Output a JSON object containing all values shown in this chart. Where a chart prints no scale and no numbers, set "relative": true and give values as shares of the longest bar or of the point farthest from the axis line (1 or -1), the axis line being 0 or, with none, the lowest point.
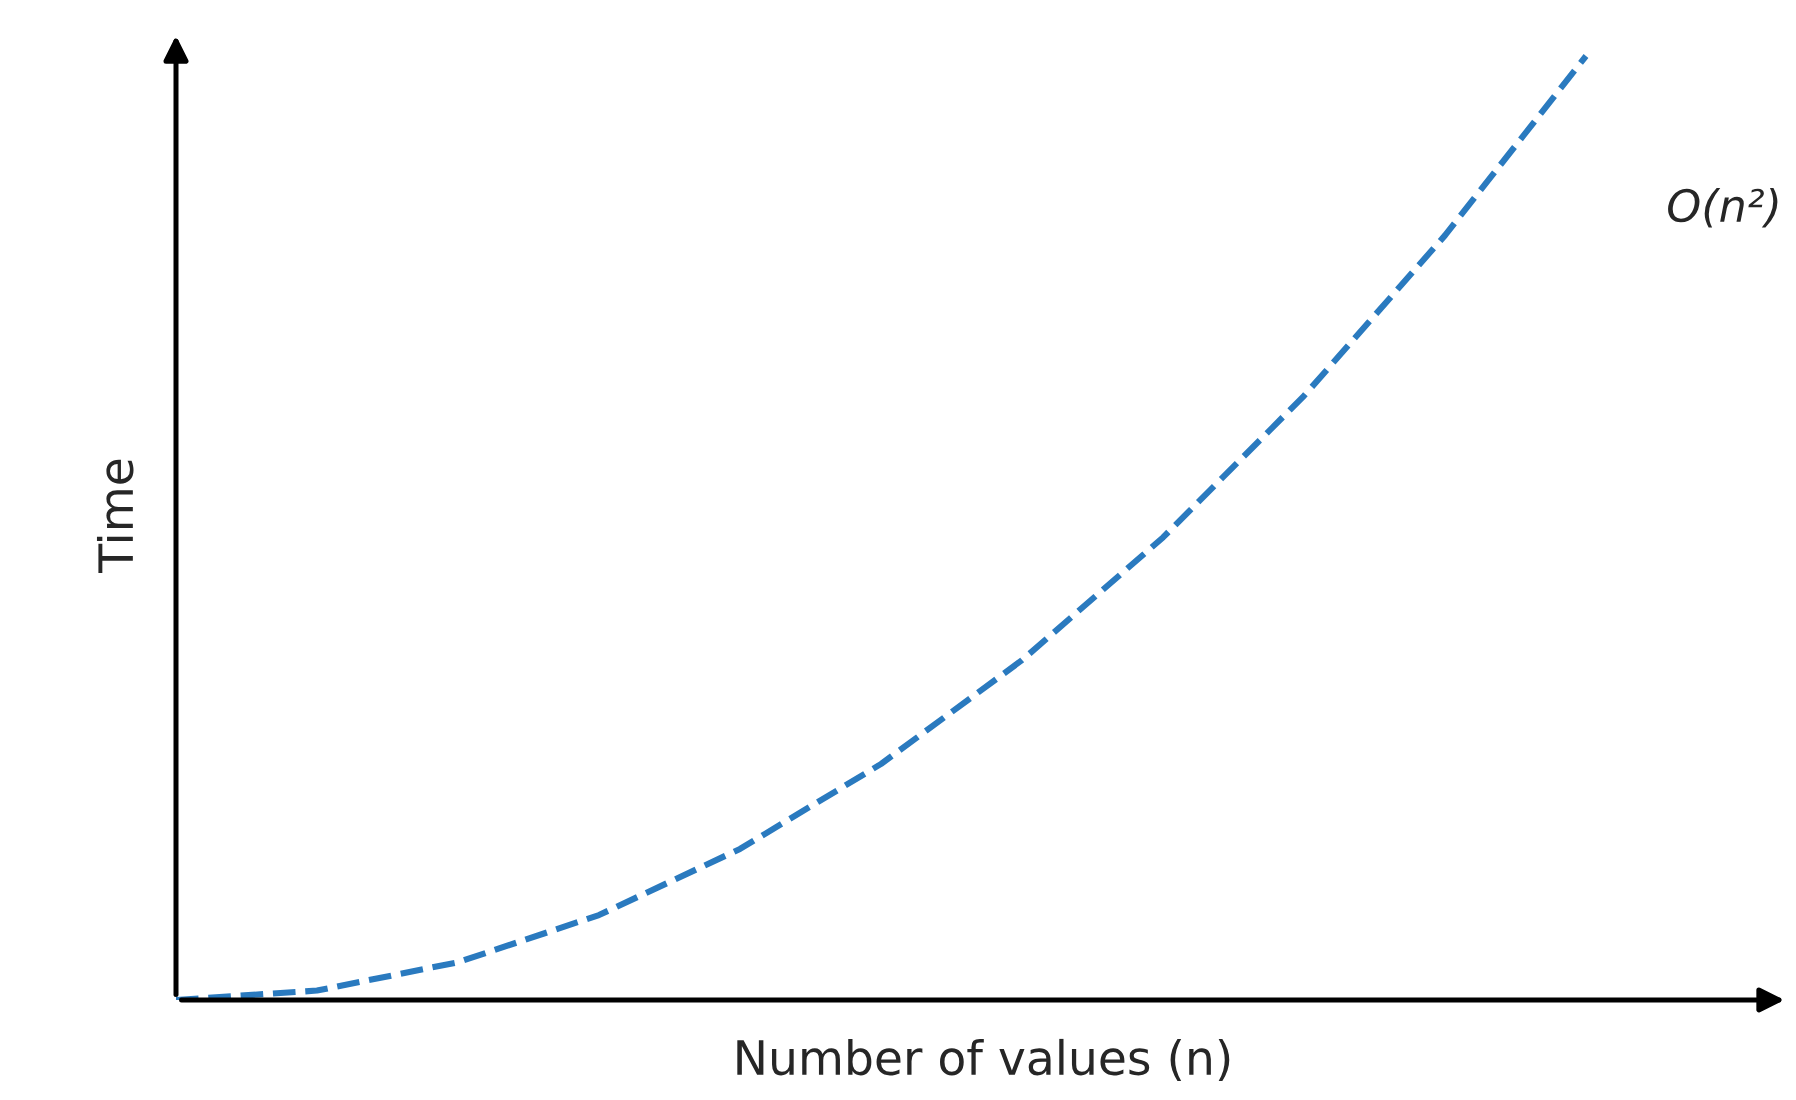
{
  "chart_data": {
    "type": "line",
    "relative": true,
    "xlabel": "Number of values (n)",
    "ylabel": "Time",
    "categories": [
      null,
      null,
      null,
      null,
      null,
      null,
      null,
      null,
      null,
      null,
      null
    ],
    "series": [
      {
        "color": "#2a7abf",
        "values": [
          0,
          0.01,
          0.04,
          0.09,
          0.16,
          0.25,
          0.36,
          0.49,
          0.64,
          0.81,
          1
        ]
      }
    ],
    "line_style": "dashed",
    "marker": "none",
    "annotations": [
      "O(n²)"
    ]
  }
}
